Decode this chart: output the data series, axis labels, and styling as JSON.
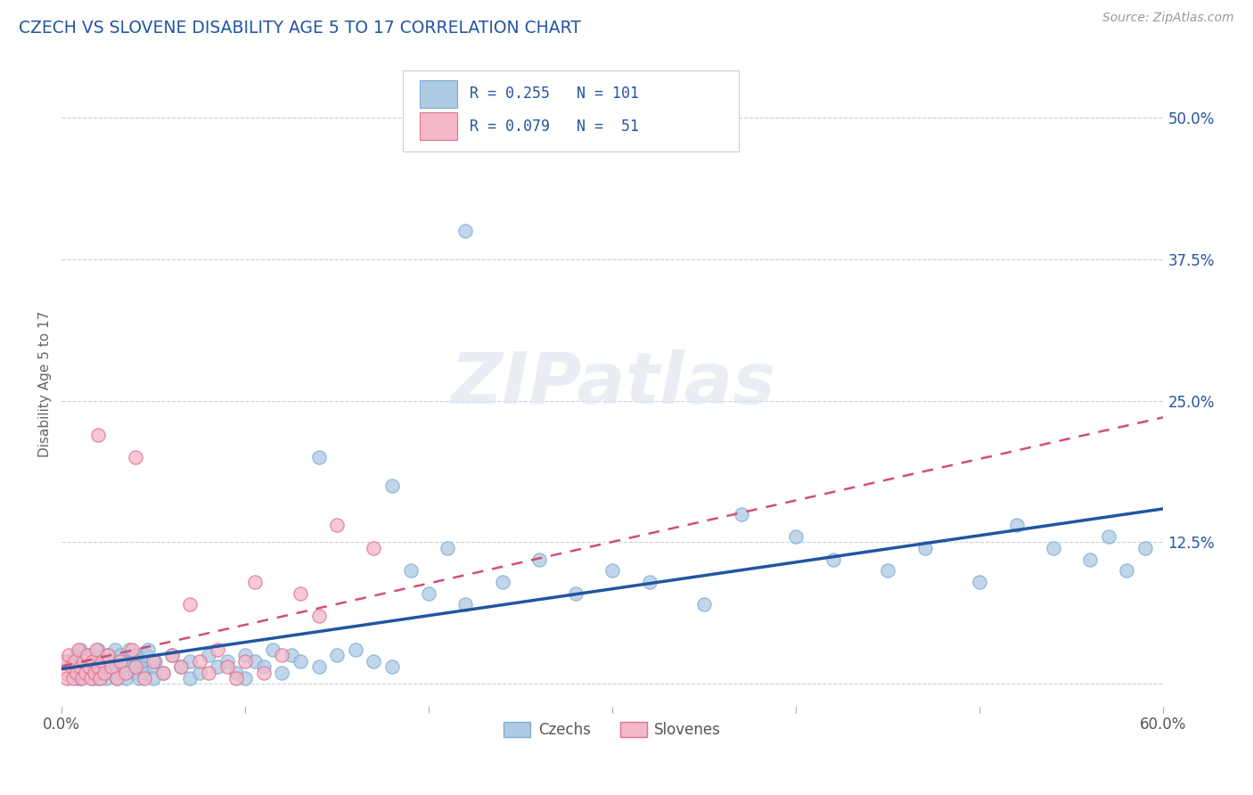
{
  "title": "CZECH VS SLOVENE DISABILITY AGE 5 TO 17 CORRELATION CHART",
  "source_text": "Source: ZipAtlas.com",
  "ylabel": "Disability Age 5 to 17",
  "xlim": [
    0.0,
    0.6
  ],
  "ylim": [
    -0.02,
    0.55
  ],
  "x_ticks": [
    0.0,
    0.1,
    0.2,
    0.3,
    0.4,
    0.5,
    0.6
  ],
  "x_tick_labels": [
    "0.0%",
    "",
    "",
    "",
    "",
    "",
    "60.0%"
  ],
  "y_ticks": [
    0.0,
    0.125,
    0.25,
    0.375,
    0.5
  ],
  "y_tick_labels_right": [
    "",
    "12.5%",
    "25.0%",
    "37.5%",
    "50.0%"
  ],
  "czech_color": "#7bafd4",
  "czech_color_fill": "#aec9e3",
  "slovene_color_fill": "#f4b8c8",
  "slovene_color_edge": "#e07090",
  "czech_R": 0.255,
  "czech_N": 101,
  "slovene_R": 0.079,
  "slovene_N": 51,
  "watermark": "ZIPatlas",
  "czech_line_color": "#2255a0",
  "slovene_line_color": "#d05070",
  "czech_x": [
    0.003,
    0.005,
    0.007,
    0.008,
    0.009,
    0.01,
    0.01,
    0.01,
    0.01,
    0.01,
    0.012,
    0.013,
    0.014,
    0.015,
    0.016,
    0.017,
    0.018,
    0.019,
    0.02,
    0.02,
    0.02,
    0.02,
    0.021,
    0.022,
    0.023,
    0.024,
    0.025,
    0.026,
    0.027,
    0.028,
    0.029,
    0.03,
    0.03,
    0.031,
    0.032,
    0.033,
    0.034,
    0.035,
    0.036,
    0.037,
    0.038,
    0.04,
    0.04,
    0.041,
    0.042,
    0.043,
    0.044,
    0.045,
    0.046,
    0.047,
    0.05,
    0.05,
    0.051,
    0.055,
    0.06,
    0.065,
    0.07,
    0.07,
    0.075,
    0.08,
    0.085,
    0.09,
    0.095,
    0.1,
    0.1,
    0.105,
    0.11,
    0.115,
    0.12,
    0.125,
    0.13,
    0.14,
    0.15,
    0.16,
    0.17,
    0.18,
    0.19,
    0.2,
    0.21,
    0.22,
    0.24,
    0.26,
    0.28,
    0.3,
    0.32,
    0.35,
    0.37,
    0.4,
    0.42,
    0.45,
    0.47,
    0.5,
    0.52,
    0.54,
    0.56,
    0.57,
    0.58,
    0.59,
    0.14,
    0.18,
    0.22
  ],
  "czech_y": [
    0.02,
    0.015,
    0.01,
    0.025,
    0.005,
    0.015,
    0.02,
    0.01,
    0.005,
    0.03,
    0.015,
    0.02,
    0.01,
    0.025,
    0.015,
    0.005,
    0.02,
    0.01,
    0.015,
    0.025,
    0.005,
    0.03,
    0.015,
    0.02,
    0.01,
    0.005,
    0.025,
    0.015,
    0.02,
    0.01,
    0.03,
    0.005,
    0.015,
    0.02,
    0.025,
    0.01,
    0.015,
    0.005,
    0.02,
    0.03,
    0.015,
    0.01,
    0.025,
    0.02,
    0.005,
    0.015,
    0.02,
    0.01,
    0.025,
    0.03,
    0.015,
    0.005,
    0.02,
    0.01,
    0.025,
    0.015,
    0.02,
    0.005,
    0.01,
    0.025,
    0.015,
    0.02,
    0.01,
    0.025,
    0.005,
    0.02,
    0.015,
    0.03,
    0.01,
    0.025,
    0.02,
    0.015,
    0.025,
    0.03,
    0.02,
    0.015,
    0.1,
    0.08,
    0.12,
    0.07,
    0.09,
    0.11,
    0.08,
    0.1,
    0.09,
    0.07,
    0.15,
    0.13,
    0.11,
    0.1,
    0.12,
    0.09,
    0.14,
    0.12,
    0.11,
    0.13,
    0.1,
    0.12,
    0.2,
    0.175,
    0.4
  ],
  "slovene_x": [
    0.001,
    0.002,
    0.003,
    0.004,
    0.005,
    0.006,
    0.007,
    0.008,
    0.009,
    0.01,
    0.011,
    0.012,
    0.013,
    0.014,
    0.015,
    0.016,
    0.017,
    0.018,
    0.019,
    0.02,
    0.02,
    0.021,
    0.022,
    0.023,
    0.025,
    0.027,
    0.03,
    0.032,
    0.035,
    0.038,
    0.04,
    0.04,
    0.045,
    0.05,
    0.055,
    0.06,
    0.065,
    0.07,
    0.075,
    0.08,
    0.085,
    0.09,
    0.095,
    0.1,
    0.105,
    0.11,
    0.12,
    0.13,
    0.14,
    0.15,
    0.17
  ],
  "slovene_y": [
    0.02,
    0.01,
    0.005,
    0.025,
    0.015,
    0.005,
    0.02,
    0.01,
    0.03,
    0.015,
    0.005,
    0.02,
    0.01,
    0.025,
    0.015,
    0.005,
    0.02,
    0.01,
    0.03,
    0.015,
    0.22,
    0.005,
    0.02,
    0.01,
    0.025,
    0.015,
    0.005,
    0.02,
    0.01,
    0.03,
    0.015,
    0.2,
    0.005,
    0.02,
    0.01,
    0.025,
    0.015,
    0.07,
    0.02,
    0.01,
    0.03,
    0.015,
    0.005,
    0.02,
    0.09,
    0.01,
    0.025,
    0.08,
    0.06,
    0.14,
    0.12
  ]
}
